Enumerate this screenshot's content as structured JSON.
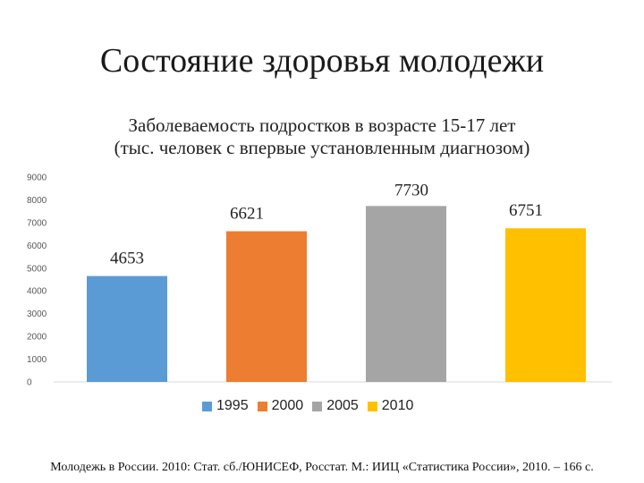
{
  "slide": {
    "title": "Состояние здоровья молодежи",
    "source": "Молодежь в России. 2010: Стат. сб./ЮНИСЕФ, Росстат. М.: ИИЦ «Статистика России», 2010. – 166 с."
  },
  "chart_data": {
    "type": "bar",
    "title_line1": "Заболеваемость подростков в возрасте 15-17 лет",
    "title_line2": "(тыс. человек с впервые установленным диагнозом)",
    "categories": [
      "1995",
      "2000",
      "2005",
      "2010"
    ],
    "values": [
      4653,
      6621,
      7730,
      6751
    ],
    "data_labels": [
      "4653",
      "6621",
      "7730",
      "6751"
    ],
    "colors": [
      "#5b9bd5",
      "#ed7d31",
      "#a5a5a5",
      "#ffc000"
    ],
    "ylim": [
      0,
      9000
    ],
    "yticks": [
      0,
      1000,
      2000,
      3000,
      4000,
      5000,
      6000,
      7000,
      8000,
      9000
    ],
    "grid": false,
    "legend_position": "bottom",
    "xlabel": "",
    "ylabel": ""
  }
}
